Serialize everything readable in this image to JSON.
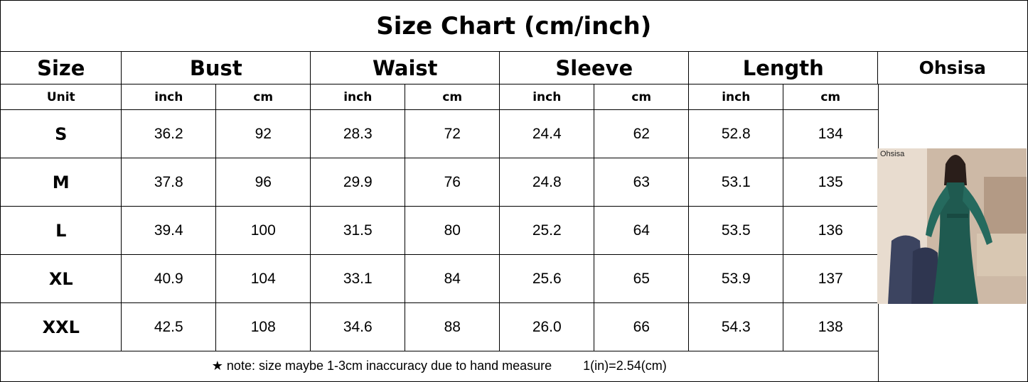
{
  "title": "Size Chart (cm/inch)",
  "table": {
    "headers": [
      "Size",
      "Bust",
      "Waist",
      "Sleeve",
      "Length"
    ],
    "brand": "Ohsisa",
    "unit_label": "Unit",
    "units": [
      "inch",
      "cm",
      "inch",
      "cm",
      "inch",
      "cm",
      "inch",
      "cm"
    ],
    "rows": [
      [
        "S",
        "36.2",
        "92",
        "28.3",
        "72",
        "24.4",
        "62",
        "52.8",
        "134"
      ],
      [
        "M",
        "37.8",
        "96",
        "29.9",
        "76",
        "24.8",
        "63",
        "53.1",
        "135"
      ],
      [
        "L",
        "39.4",
        "100",
        "31.5",
        "80",
        "25.2",
        "64",
        "53.5",
        "136"
      ],
      [
        "XL",
        "40.9",
        "104",
        "33.1",
        "84",
        "25.6",
        "65",
        "53.9",
        "137"
      ],
      [
        "XXL",
        "42.5",
        "108",
        "34.6",
        "88",
        "26.0",
        "66",
        "54.3",
        "138"
      ]
    ]
  },
  "note": {
    "text": "★ note: size maybe 1-3cm inaccuracy due to hand measure",
    "conversion": "1(in)=2.54(cm)"
  },
  "photo": {
    "caption": "Ohsisa"
  }
}
